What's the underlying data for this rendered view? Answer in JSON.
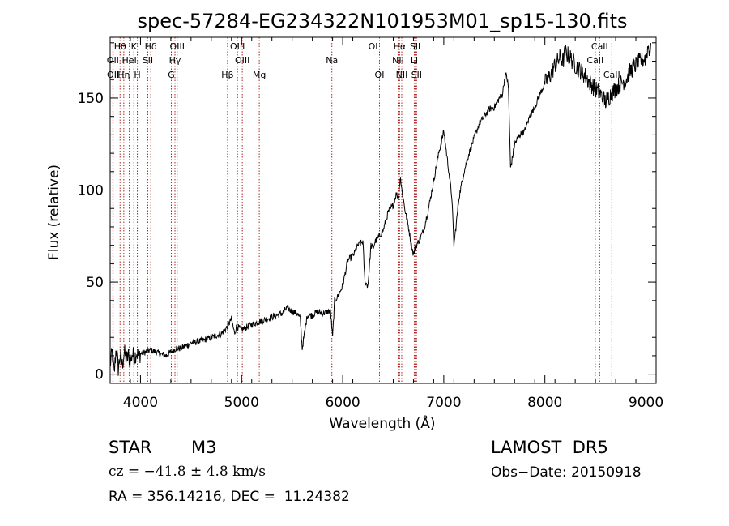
{
  "chart_data": {
    "type": "line",
    "title": "spec-57284-EG234322N101953M01_sp15-130.fits",
    "xlabel": "Wavelength (Å)",
    "ylabel": "Flux (relative)",
    "xlim": [
      3700,
      9100
    ],
    "ylim": [
      -5,
      183
    ],
    "x_ticks": [
      4000,
      5000,
      6000,
      7000,
      8000,
      9000
    ],
    "y_ticks": [
      0,
      50,
      100,
      150
    ],
    "series": [
      {
        "x": [
          3700,
          3720,
          3740,
          3760,
          3780,
          3800,
          3820,
          3840,
          3860,
          3880,
          3900,
          3920,
          3940,
          3960,
          3980,
          4000,
          4050,
          4100,
          4150,
          4200,
          4250,
          4300,
          4350,
          4400,
          4500,
          4600,
          4700,
          4750,
          4800,
          4850,
          4900,
          4930,
          4950,
          5000,
          5100,
          5200,
          5300,
          5400,
          5450,
          5500,
          5550,
          5580,
          5600,
          5650,
          5700,
          5750,
          5800,
          5850,
          5880,
          5900,
          5920,
          5950,
          6000,
          6050,
          6100,
          6150,
          6200,
          6220,
          6250,
          6280,
          6300,
          6320,
          6350,
          6400,
          6450,
          6500,
          6530,
          6550,
          6560,
          6570,
          6580,
          6600,
          6620,
          6650,
          6680,
          6700,
          6720,
          6750,
          6800,
          6850,
          6900,
          6950,
          7000,
          7050,
          7080,
          7100,
          7120,
          7150,
          7200,
          7250,
          7300,
          7350,
          7400,
          7450,
          7500,
          7550,
          7580,
          7600,
          7620,
          7640,
          7660,
          7680,
          7700,
          7750,
          7800,
          7850,
          7900,
          7950,
          8000,
          8050,
          8100,
          8150,
          8180,
          8200,
          8250,
          8300,
          8350,
          8400,
          8450,
          8500,
          8550,
          8600,
          8650,
          8700,
          8750,
          8800,
          8850,
          8900,
          8950,
          9000,
          9020,
          9050
        ],
        "y": [
          5,
          12,
          0,
          15,
          3,
          10,
          5,
          12,
          8,
          10,
          7,
          11,
          9,
          12,
          10,
          11,
          12,
          13,
          12,
          11,
          10,
          12,
          14,
          14,
          17,
          18,
          20,
          21,
          22,
          25,
          30,
          22,
          26,
          24,
          27,
          29,
          31,
          33,
          36,
          34,
          33,
          30,
          14,
          32,
          32,
          34,
          33,
          34,
          34,
          20,
          40,
          42,
          48,
          62,
          64,
          70,
          72,
          50,
          48,
          70,
          68,
          72,
          74,
          78,
          88,
          92,
          98,
          96,
          101,
          108,
          102,
          95,
          88,
          80,
          70,
          65,
          69,
          72,
          78,
          90,
          105,
          120,
          132,
          110,
          96,
          70,
          80,
          96,
          110,
          120,
          128,
          136,
          140,
          144,
          145,
          150,
          152,
          160,
          163,
          155,
          112,
          118,
          125,
          130,
          132,
          140,
          145,
          152,
          158,
          162,
          168,
          172,
          170,
          175,
          172,
          168,
          165,
          162,
          158,
          155,
          152,
          148,
          152,
          155,
          158,
          160,
          165,
          168,
          170,
          172,
          178,
          175
        ]
      }
    ],
    "lines": [
      {
        "label": "Hθ",
        "x": 3798,
        "row": 1
      },
      {
        "label": "OII",
        "x": 3727,
        "row": 2
      },
      {
        "label": "OII",
        "x": 3729,
        "row": 3
      },
      {
        "label": "Hη",
        "x": 3835,
        "row": 3
      },
      {
        "label": "K",
        "x": 3934,
        "row": 1
      },
      {
        "label": "HeI",
        "x": 3889,
        "row": 2
      },
      {
        "label": "H",
        "x": 3969,
        "row": 3
      },
      {
        "label": "Hδ",
        "x": 4102,
        "row": 1
      },
      {
        "label": "SII",
        "x": 4072,
        "row": 2
      },
      {
        "label": "OIII",
        "x": 4363,
        "row": 1
      },
      {
        "label": "Hγ",
        "x": 4341,
        "row": 2
      },
      {
        "label": "G",
        "x": 4305,
        "row": 3
      },
      {
        "label": "OIII",
        "x": 4959,
        "row": 1
      },
      {
        "label": "OIII",
        "x": 5007,
        "row": 2
      },
      {
        "label": "Hβ",
        "x": 4861,
        "row": 3
      },
      {
        "label": "Mg",
        "x": 5175,
        "row": 3
      },
      {
        "label": "Na",
        "x": 5893,
        "row": 2
      },
      {
        "label": "OI",
        "x": 6300,
        "row": 1
      },
      {
        "label": "OI",
        "x": 6364,
        "row": 3
      },
      {
        "label": "Hα",
        "x": 6563,
        "row": 1
      },
      {
        "label": "NII",
        "x": 6548,
        "row": 2
      },
      {
        "label": "NII",
        "x": 6584,
        "row": 3
      },
      {
        "label": "SII",
        "x": 6717,
        "row": 1
      },
      {
        "label": "Li",
        "x": 6708,
        "row": 2
      },
      {
        "label": "SII",
        "x": 6731,
        "row": 3
      },
      {
        "label": "CaII",
        "x": 8542,
        "row": 1
      },
      {
        "label": "CaII",
        "x": 8498,
        "row": 2
      },
      {
        "label": "CaII",
        "x": 8662,
        "row": 3
      }
    ]
  },
  "info": {
    "class": "STAR",
    "subclass": "M3",
    "survey": "LAMOST  DR5",
    "cz": "cz = −41.8 ± 4.8 km/s",
    "obs_date": "Obs−Date: 20150918",
    "coords": "RA = 356.14216, DEC =  11.24382"
  }
}
